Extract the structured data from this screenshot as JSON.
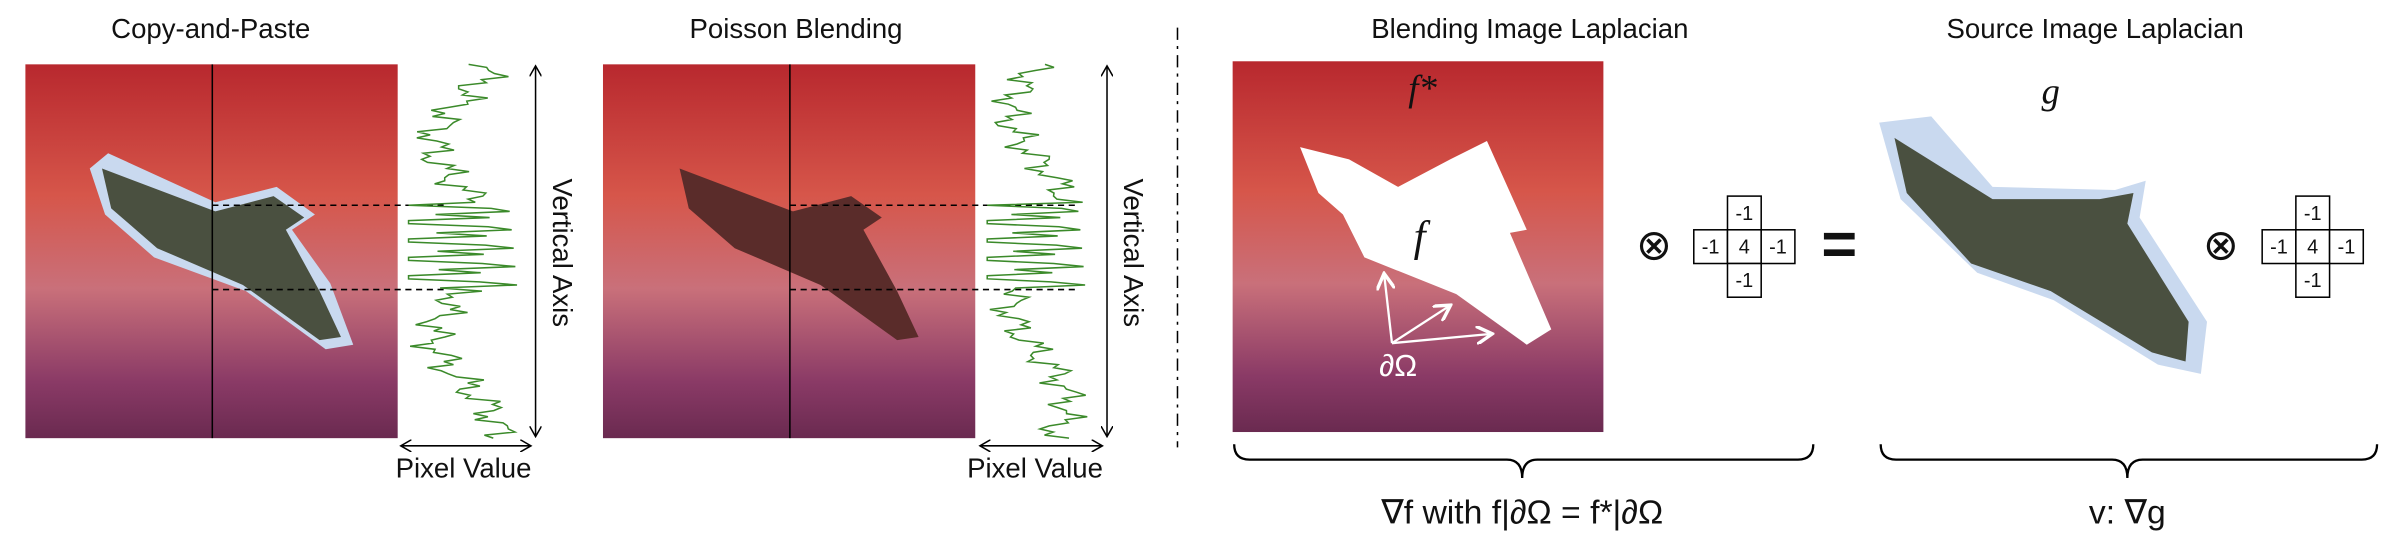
{
  "panels": [
    {
      "title": "Copy-and-Paste",
      "y_axis_label": "Vertical Axis",
      "x_axis_label": "Pixel Value"
    },
    {
      "title": "Poisson Blending",
      "y_axis_label": "Vertical Axis",
      "x_axis_label": "Pixel Value"
    }
  ],
  "laplacian_panels": [
    {
      "title": "Blending Image Laplacian",
      "target_label": "f*",
      "region_label": "f",
      "boundary_label": "∂Ω",
      "kernel": [
        -1,
        -1,
        4,
        -1,
        -1
      ],
      "caption": "∇f with f|∂Ω = f*|∂Ω"
    },
    {
      "title": "Source Image Laplacian",
      "source_label": "g",
      "kernel": [
        -1,
        -1,
        4,
        -1,
        -1
      ],
      "caption": "v: ∇g"
    }
  ],
  "operators": [
    "⊗",
    "=",
    "⊗"
  ]
}
